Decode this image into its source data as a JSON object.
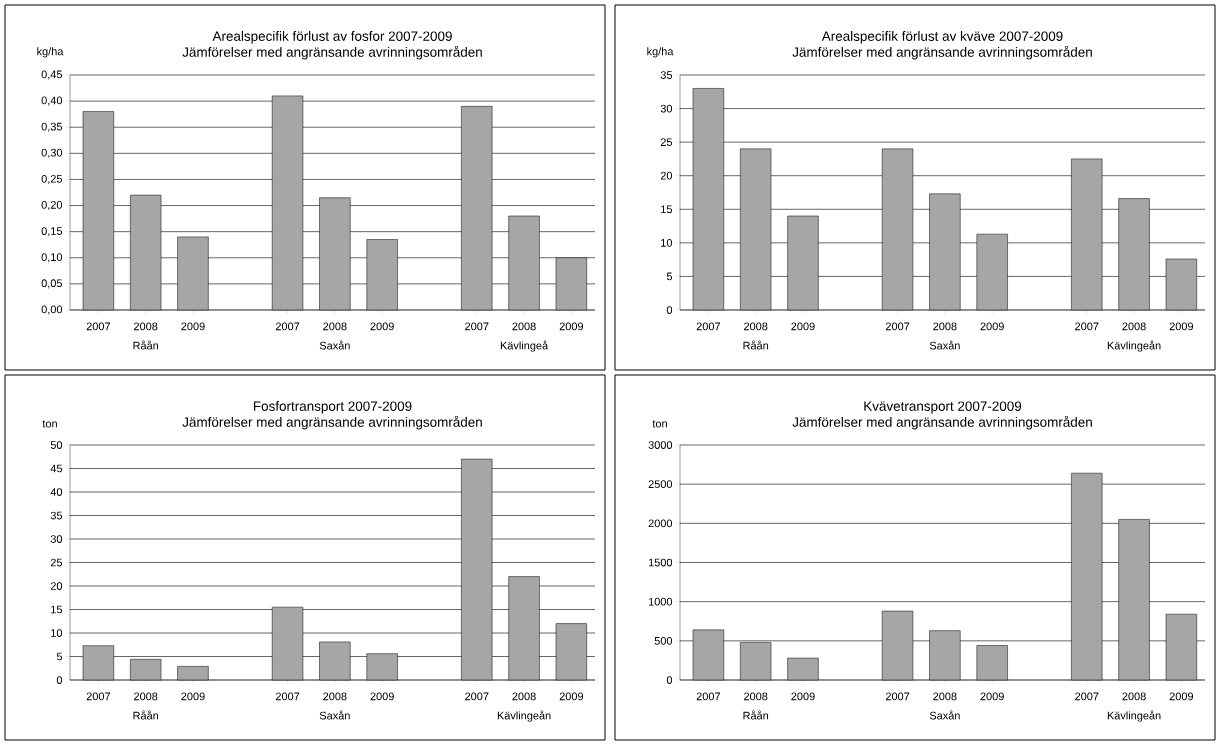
{
  "chart_data": [
    {
      "type": "bar",
      "title": "Arealspecifik förlust av fosfor 2007-2009",
      "subtitle": "Jämförelser med angränsande avrinningsområden",
      "ylabel": "kg/ha",
      "categories": [
        "2007",
        "2008",
        "2009",
        null,
        "2007",
        "2008",
        "2009",
        null,
        "2007",
        "2008",
        "2009"
      ],
      "values": [
        0.38,
        0.22,
        0.14,
        null,
        0.41,
        0.215,
        0.135,
        null,
        0.39,
        0.18,
        0.1
      ],
      "color": "#a6a6a6",
      "ylim": [
        0,
        0.45
      ],
      "yticks": [
        {
          "value": 0,
          "label": "0,00"
        },
        {
          "value": 0.05,
          "label": "0,05"
        },
        {
          "value": 0.1,
          "label": "0,10"
        },
        {
          "value": 0.15,
          "label": "0,15"
        },
        {
          "value": 0.2,
          "label": "0,20"
        },
        {
          "value": 0.25,
          "label": "0,25"
        },
        {
          "value": 0.3,
          "label": "0,30"
        },
        {
          "value": 0.35,
          "label": "0,35"
        },
        {
          "value": 0.4,
          "label": "0,40"
        },
        {
          "value": 0.45,
          "label": "0,45"
        }
      ],
      "grid": "y",
      "annotations": [
        "Råån",
        "Saxån",
        "Kävlingeå"
      ]
    },
    {
      "type": "bar",
      "title": "Arealspecifik förlust av kväve 2007-2009",
      "subtitle": "Jämförelser med angränsande avrinningsområden",
      "ylabel": "kg/ha",
      "categories": [
        "2007",
        "2008",
        "2009",
        null,
        "2007",
        "2008",
        "2009",
        null,
        "2007",
        "2008",
        "2009"
      ],
      "values": [
        33,
        24,
        14,
        null,
        24,
        17.3,
        11.3,
        null,
        22.5,
        16.6,
        7.6
      ],
      "color": "#a6a6a6",
      "ylim": [
        0,
        35
      ],
      "yticks": [
        0,
        5,
        10,
        15,
        20,
        25,
        30,
        35
      ],
      "grid": "y",
      "annotations": [
        "Råån",
        "Saxån",
        "Kävlingeån"
      ]
    },
    {
      "type": "bar",
      "title": "Fosfortransport 2007-2009",
      "subtitle": "Jämförelser med angränsande avrinningsområden",
      "ylabel": "ton",
      "categories": [
        "2007",
        "2008",
        "2009",
        null,
        "2007",
        "2008",
        "2009",
        null,
        "2007",
        "2008",
        "2009"
      ],
      "values": [
        7.3,
        4.4,
        2.9,
        null,
        15.5,
        8.1,
        5.6,
        null,
        47,
        22,
        12
      ],
      "color": "#a6a6a6",
      "ylim": [
        0,
        50
      ],
      "yticks": [
        0,
        5,
        10,
        15,
        20,
        25,
        30,
        35,
        40,
        45,
        50
      ],
      "grid": "y",
      "annotations": [
        "Råån",
        "Saxån",
        "Kävlingeån"
      ]
    },
    {
      "type": "bar",
      "title": "Kvävetransport 2007-2009",
      "subtitle": "Jämförelser med angränsande avrinningsområden",
      "ylabel": "ton",
      "categories": [
        "2007",
        "2008",
        "2009",
        null,
        "2007",
        "2008",
        "2009",
        null,
        "2007",
        "2008",
        "2009"
      ],
      "values": [
        640,
        480,
        280,
        null,
        880,
        630,
        440,
        null,
        2640,
        2050,
        840
      ],
      "color": "#a6a6a6",
      "ylim": [
        0,
        3000
      ],
      "yticks": [
        0,
        500,
        1000,
        1500,
        2000,
        2500,
        3000
      ],
      "grid": "y",
      "annotations": [
        "Råån",
        "Saxån",
        "Kävlingeån"
      ]
    }
  ]
}
